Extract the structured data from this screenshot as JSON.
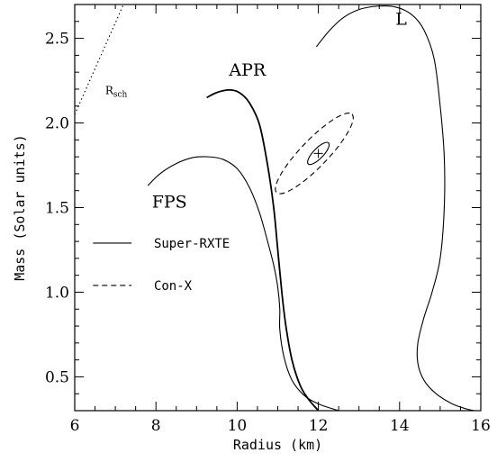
{
  "chart_data": {
    "type": "line",
    "title": "",
    "xlabel": "Radius (km)",
    "ylabel": "Mass (Solar units)",
    "xlim": [
      6,
      16
    ],
    "ylim": [
      0.3,
      2.7
    ],
    "xticks": [
      6,
      8,
      10,
      12,
      14,
      16
    ],
    "yticks": [
      0.5,
      1.0,
      1.5,
      2.0,
      2.5
    ],
    "xtick_labels": [
      "6",
      "8",
      "10",
      "12",
      "14",
      "16"
    ],
    "ytick_labels": [
      "0.5",
      "1.0",
      "1.5",
      "2.0",
      "2.5"
    ],
    "grid": false,
    "series": [
      {
        "name": "APR",
        "style": "solid-thick",
        "points": [
          [
            9.25,
            2.15
          ],
          [
            9.5,
            2.18
          ],
          [
            9.8,
            2.195
          ],
          [
            10.05,
            2.18
          ],
          [
            10.3,
            2.12
          ],
          [
            10.55,
            1.99
          ],
          [
            10.75,
            1.75
          ],
          [
            10.9,
            1.5
          ],
          [
            11.0,
            1.25
          ],
          [
            11.1,
            1.0
          ],
          [
            11.2,
            0.8
          ],
          [
            11.35,
            0.6
          ],
          [
            11.55,
            0.45
          ],
          [
            11.75,
            0.37
          ],
          [
            12.0,
            0.3
          ]
        ]
      },
      {
        "name": "FPS",
        "style": "solid",
        "points": [
          [
            7.8,
            1.63
          ],
          [
            8.1,
            1.7
          ],
          [
            8.5,
            1.76
          ],
          [
            8.9,
            1.795
          ],
          [
            9.3,
            1.8
          ],
          [
            9.65,
            1.785
          ],
          [
            10.0,
            1.73
          ],
          [
            10.3,
            1.62
          ],
          [
            10.55,
            1.47
          ],
          [
            10.75,
            1.3
          ],
          [
            10.9,
            1.16
          ],
          [
            11.0,
            1.03
          ],
          [
            11.05,
            0.9
          ],
          [
            11.05,
            0.78
          ],
          [
            11.15,
            0.62
          ],
          [
            11.35,
            0.48
          ],
          [
            11.65,
            0.39
          ],
          [
            12.0,
            0.34
          ],
          [
            12.5,
            0.3
          ]
        ]
      },
      {
        "name": "L",
        "style": "solid",
        "points": [
          [
            11.95,
            2.45
          ],
          [
            12.25,
            2.54
          ],
          [
            12.6,
            2.62
          ],
          [
            13.0,
            2.67
          ],
          [
            13.45,
            2.69
          ],
          [
            13.9,
            2.685
          ],
          [
            14.3,
            2.64
          ],
          [
            14.6,
            2.55
          ],
          [
            14.85,
            2.38
          ],
          [
            15.0,
            2.1
          ],
          [
            15.1,
            1.8
          ],
          [
            15.1,
            1.5
          ],
          [
            15.0,
            1.2
          ],
          [
            14.8,
            1.0
          ],
          [
            14.6,
            0.85
          ],
          [
            14.45,
            0.7
          ],
          [
            14.45,
            0.58
          ],
          [
            14.6,
            0.48
          ],
          [
            14.9,
            0.4
          ],
          [
            15.3,
            0.34
          ],
          [
            15.65,
            0.31
          ],
          [
            15.85,
            0.3
          ]
        ]
      },
      {
        "name": "Rsch",
        "style": "dotted",
        "points": [
          [
            6.0,
            2.05
          ],
          [
            7.2,
            2.7
          ]
        ]
      }
    ],
    "constraints": [
      {
        "name": "Super-RXTE",
        "style": "solid",
        "center": [
          12.0,
          1.82
        ],
        "r_major": 0.36,
        "r_minor": 0.03,
        "angle_deg": 14
      },
      {
        "name": "Con-X",
        "style": "dashed",
        "center": [
          11.9,
          1.82
        ],
        "r_major": 1.34,
        "r_minor": 0.08,
        "angle_deg": 14
      }
    ],
    "annotations": [
      {
        "text": "APR",
        "x": 9.8,
        "y": 2.28
      },
      {
        "text": "FPS",
        "x": 7.9,
        "y": 1.5
      },
      {
        "text": "L",
        "x": 13.9,
        "y": 2.58
      },
      {
        "text": "R",
        "sub": "sch",
        "x": 6.75,
        "y": 2.17
      }
    ],
    "legend": {
      "position": "left-middle",
      "entries": [
        {
          "label": "Super-RXTE",
          "style": "solid"
        },
        {
          "label": "Con-X",
          "style": "dashed"
        }
      ]
    }
  }
}
